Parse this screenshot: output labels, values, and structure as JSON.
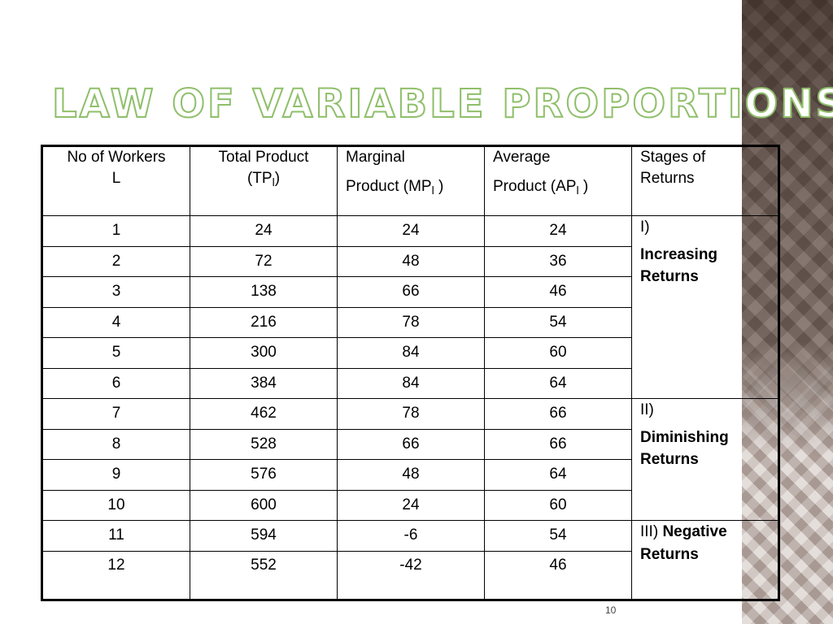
{
  "slide": {
    "title": "LAW OF VARIABLE PROPORTIONS",
    "page_number": "10"
  },
  "table": {
    "headers": {
      "workers": {
        "line1": "No of Workers",
        "line2": "L"
      },
      "tp": {
        "line1": "Total Product",
        "line2a": "(TP",
        "sub": "l",
        "line2b": ")"
      },
      "mp": {
        "line1": "Marginal",
        "line2a": "Product (MP",
        "sub": "l",
        "line2b": " )"
      },
      "ap": {
        "line1": "Average",
        "line2a": "Product (AP",
        "sub": "l",
        "line2b": " )"
      },
      "stages": {
        "line1": "Stages of",
        "line2": "Returns"
      }
    },
    "rows": [
      {
        "l": "1",
        "tp": "24",
        "mp": "24",
        "ap": "24"
      },
      {
        "l": "2",
        "tp": "72",
        "mp": "48",
        "ap": "36"
      },
      {
        "l": "3",
        "tp": "138",
        "mp": "66",
        "ap": "46"
      },
      {
        "l": "4",
        "tp": "216",
        "mp": "78",
        "ap": "54"
      },
      {
        "l": "5",
        "tp": "300",
        "mp": "84",
        "ap": "60"
      },
      {
        "l": "6",
        "tp": "384",
        "mp": "84",
        "ap": "64"
      },
      {
        "l": "7",
        "tp": "462",
        "mp": "78",
        "ap": "66"
      },
      {
        "l": "8",
        "tp": "528",
        "mp": "66",
        "ap": "66"
      },
      {
        "l": "9",
        "tp": "576",
        "mp": "48",
        "ap": "64"
      },
      {
        "l": "10",
        "tp": "600",
        "mp": "24",
        "ap": "60"
      },
      {
        "l": "11",
        "tp": "594",
        "mp": "-6",
        "ap": "54"
      },
      {
        "l": "12",
        "tp": "552",
        "mp": "-42",
        "ap": "46"
      }
    ],
    "stages": [
      {
        "roman": "I)",
        "name_line1": "Increasing",
        "name_line2": "Returns"
      },
      {
        "roman": "II)",
        "name_line1": "Diminishing",
        "name_line2": "Returns"
      },
      {
        "roman": "III)",
        "name_line1": "Negative",
        "name_line2": "Returns"
      }
    ]
  },
  "colors": {
    "title_outline": "#8fbf6a",
    "side_panel": "#7a6860"
  }
}
